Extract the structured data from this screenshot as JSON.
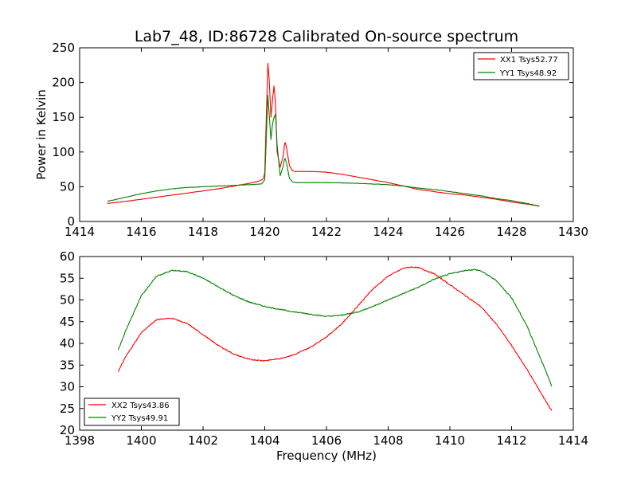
{
  "title": "Lab7_48, ID:86728 Calibrated On-source spectrum",
  "colors": {
    "red": "#ff0000",
    "green": "#008000"
  },
  "chart_data": [
    {
      "type": "line",
      "ylabel": "Power in Kelvin",
      "xlabel": "",
      "xlim": [
        1414,
        1430
      ],
      "ylim": [
        0,
        250
      ],
      "xticks": [
        1414,
        1416,
        1418,
        1420,
        1422,
        1424,
        1426,
        1428,
        1430
      ],
      "yticks": [
        0,
        50,
        100,
        150,
        200,
        250
      ],
      "legend_position": "top-right",
      "series": [
        {
          "name": "XX1 Tsys52.77",
          "color": "#ff0000",
          "points": [
            [
              1414.9,
              26
            ],
            [
              1415.5,
              29
            ],
            [
              1416,
              32
            ],
            [
              1416.5,
              35
            ],
            [
              1417,
              38
            ],
            [
              1417.5,
              41
            ],
            [
              1418,
              44
            ],
            [
              1418.5,
              47
            ],
            [
              1419,
              51
            ],
            [
              1419.5,
              55
            ],
            [
              1419.8,
              58
            ],
            [
              1419.95,
              61
            ],
            [
              1420.0,
              70
            ],
            [
              1420.05,
              150
            ],
            [
              1420.1,
              228
            ],
            [
              1420.15,
              200
            ],
            [
              1420.2,
              150
            ],
            [
              1420.25,
              175
            ],
            [
              1420.3,
              195
            ],
            [
              1420.35,
              170
            ],
            [
              1420.4,
              100
            ],
            [
              1420.5,
              78
            ],
            [
              1420.6,
              95
            ],
            [
              1420.65,
              115
            ],
            [
              1420.7,
              108
            ],
            [
              1420.8,
              80
            ],
            [
              1420.9,
              73
            ],
            [
              1421,
              72
            ],
            [
              1421.5,
              72
            ],
            [
              1422,
              71
            ],
            [
              1422.5,
              68
            ],
            [
              1423,
              64
            ],
            [
              1423.5,
              60
            ],
            [
              1424,
              56
            ],
            [
              1424.5,
              51
            ],
            [
              1425,
              46
            ],
            [
              1425.5,
              43
            ],
            [
              1426,
              40
            ],
            [
              1426.5,
              38
            ],
            [
              1427,
              35
            ],
            [
              1427.5,
              32
            ],
            [
              1428,
              28
            ],
            [
              1428.5,
              25
            ],
            [
              1428.9,
              22
            ]
          ]
        },
        {
          "name": "YY1 Tsys48.92",
          "color": "#008000",
          "points": [
            [
              1414.9,
              29
            ],
            [
              1415.5,
              35
            ],
            [
              1416,
              40
            ],
            [
              1416.5,
              44
            ],
            [
              1417,
              47
            ],
            [
              1417.5,
              49
            ],
            [
              1418,
              50
            ],
            [
              1418.5,
              51
            ],
            [
              1419,
              52
            ],
            [
              1419.5,
              53
            ],
            [
              1419.9,
              54
            ],
            [
              1420.0,
              60
            ],
            [
              1420.05,
              120
            ],
            [
              1420.1,
              182
            ],
            [
              1420.15,
              150
            ],
            [
              1420.2,
              118
            ],
            [
              1420.25,
              140
            ],
            [
              1420.3,
              150
            ],
            [
              1420.35,
              155
            ],
            [
              1420.4,
              110
            ],
            [
              1420.5,
              66
            ],
            [
              1420.6,
              80
            ],
            [
              1420.65,
              92
            ],
            [
              1420.7,
              85
            ],
            [
              1420.8,
              62
            ],
            [
              1420.9,
              57
            ],
            [
              1421,
              56
            ],
            [
              1422,
              56
            ],
            [
              1423,
              55
            ],
            [
              1424,
              53
            ],
            [
              1424.5,
              51
            ],
            [
              1425,
              48
            ],
            [
              1425.5,
              46
            ],
            [
              1426,
              43
            ],
            [
              1426.5,
              40
            ],
            [
              1427,
              37
            ],
            [
              1427.5,
              33
            ],
            [
              1428,
              30
            ],
            [
              1428.5,
              26
            ],
            [
              1428.9,
              22
            ]
          ]
        }
      ]
    },
    {
      "type": "line",
      "xlabel": "Frequency (MHz)",
      "ylabel": "",
      "xlim": [
        1398,
        1414
      ],
      "ylim": [
        20,
        60
      ],
      "xticks": [
        1398,
        1400,
        1402,
        1404,
        1406,
        1408,
        1410,
        1412,
        1414
      ],
      "yticks": [
        20,
        25,
        30,
        35,
        40,
        45,
        50,
        55,
        60
      ],
      "legend_position": "lower-left",
      "series": [
        {
          "name": "XX2 Tsys43.86",
          "color": "#ff0000",
          "points": [
            [
              1399.25,
              33.5
            ],
            [
              1399.5,
              37
            ],
            [
              1400,
              42.5
            ],
            [
              1400.5,
              45.5
            ],
            [
              1401,
              45.8
            ],
            [
              1401.5,
              44.5
            ],
            [
              1402,
              42
            ],
            [
              1402.5,
              39.5
            ],
            [
              1403,
              37.5
            ],
            [
              1403.5,
              36.3
            ],
            [
              1404,
              36
            ],
            [
              1404.5,
              36.5
            ],
            [
              1405,
              37.5
            ],
            [
              1405.5,
              39.2
            ],
            [
              1406,
              41.5
            ],
            [
              1406.5,
              44.5
            ],
            [
              1407,
              48.5
            ],
            [
              1407.5,
              52.5
            ],
            [
              1408,
              55.5
            ],
            [
              1408.5,
              57.3
            ],
            [
              1408.75,
              57.6
            ],
            [
              1409,
              57.4
            ],
            [
              1409.5,
              56
            ],
            [
              1410,
              53.5
            ],
            [
              1410.5,
              51
            ],
            [
              1411,
              48.5
            ],
            [
              1411.5,
              44.5
            ],
            [
              1412,
              39.5
            ],
            [
              1412.5,
              34
            ],
            [
              1413,
              28
            ],
            [
              1413.3,
              24.5
            ]
          ]
        },
        {
          "name": "YY2 Tsys49.91",
          "color": "#008000",
          "points": [
            [
              1399.25,
              38.5
            ],
            [
              1399.5,
              43
            ],
            [
              1400,
              51
            ],
            [
              1400.5,
              55.5
            ],
            [
              1401,
              56.8
            ],
            [
              1401.5,
              56.5
            ],
            [
              1402,
              55
            ],
            [
              1402.5,
              53
            ],
            [
              1403,
              51
            ],
            [
              1403.5,
              49.5
            ],
            [
              1404,
              48.5
            ],
            [
              1404.5,
              47.8
            ],
            [
              1405,
              47.2
            ],
            [
              1405.5,
              46.7
            ],
            [
              1406,
              46.2
            ],
            [
              1406.5,
              46.5
            ],
            [
              1407,
              47.2
            ],
            [
              1407.5,
              48.5
            ],
            [
              1408,
              50
            ],
            [
              1408.5,
              51.5
            ],
            [
              1409,
              53
            ],
            [
              1409.5,
              54.8
            ],
            [
              1410,
              56
            ],
            [
              1410.5,
              56.8
            ],
            [
              1410.8,
              57
            ],
            [
              1411,
              56.7
            ],
            [
              1411.5,
              54.5
            ],
            [
              1412,
              50.5
            ],
            [
              1412.5,
              44
            ],
            [
              1413,
              35.5
            ],
            [
              1413.3,
              30.2
            ]
          ]
        }
      ]
    }
  ]
}
